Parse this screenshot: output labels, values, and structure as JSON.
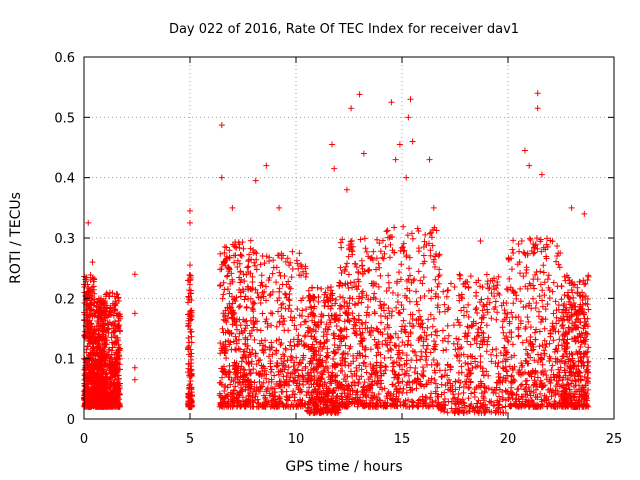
{
  "chart_data": {
    "type": "scatter",
    "title": "Day 022 of 2016, Rate Of TEC Index for receiver dav1",
    "xlabel": "GPS time / hours",
    "ylabel": "ROTI / TECUs",
    "xlim": [
      0,
      25
    ],
    "ylim": [
      0,
      0.6
    ],
    "xticks": [
      0,
      5,
      10,
      15,
      20,
      25
    ],
    "yticks": [
      0,
      0.1,
      0.2,
      0.3,
      0.4,
      0.5,
      0.6
    ],
    "xtick_labels": [
      "0",
      "5",
      "10",
      "15",
      "20",
      "25"
    ],
    "ytick_labels": [
      "0",
      "0.1",
      "0.2",
      "0.3",
      "0.4",
      "0.5",
      "0.6"
    ],
    "grid": true,
    "marker": "+",
    "color": "#ff0000",
    "series": [
      {
        "name": "ROTI",
        "notable_points": [
          {
            "x": 0.2,
            "y": 0.325
          },
          {
            "x": 0.4,
            "y": 0.26
          },
          {
            "x": 2.4,
            "y": 0.24
          },
          {
            "x": 2.4,
            "y": 0.175
          },
          {
            "x": 2.4,
            "y": 0.085
          },
          {
            "x": 2.4,
            "y": 0.065
          },
          {
            "x": 5.0,
            "y": 0.345
          },
          {
            "x": 5.0,
            "y": 0.325
          },
          {
            "x": 5.0,
            "y": 0.255
          },
          {
            "x": 6.5,
            "y": 0.487
          },
          {
            "x": 6.5,
            "y": 0.4
          },
          {
            "x": 7.0,
            "y": 0.35
          },
          {
            "x": 8.1,
            "y": 0.395
          },
          {
            "x": 8.6,
            "y": 0.42
          },
          {
            "x": 9.2,
            "y": 0.35
          },
          {
            "x": 11.7,
            "y": 0.455
          },
          {
            "x": 11.8,
            "y": 0.415
          },
          {
            "x": 12.4,
            "y": 0.38
          },
          {
            "x": 12.6,
            "y": 0.515
          },
          {
            "x": 13.0,
            "y": 0.538
          },
          {
            "x": 13.2,
            "y": 0.44
          },
          {
            "x": 14.5,
            "y": 0.525
          },
          {
            "x": 14.7,
            "y": 0.43
          },
          {
            "x": 14.9,
            "y": 0.455
          },
          {
            "x": 15.3,
            "y": 0.5
          },
          {
            "x": 15.4,
            "y": 0.53
          },
          {
            "x": 15.5,
            "y": 0.46
          },
          {
            "x": 15.2,
            "y": 0.4
          },
          {
            "x": 16.3,
            "y": 0.43
          },
          {
            "x": 16.5,
            "y": 0.35
          },
          {
            "x": 20.8,
            "y": 0.445
          },
          {
            "x": 21.0,
            "y": 0.42
          },
          {
            "x": 21.4,
            "y": 0.54
          },
          {
            "x": 21.4,
            "y": 0.515
          },
          {
            "x": 21.6,
            "y": 0.405
          },
          {
            "x": 23.0,
            "y": 0.35
          },
          {
            "x": 23.6,
            "y": 0.34
          },
          {
            "x": 20.5,
            "y": 0.29
          },
          {
            "x": 18.7,
            "y": 0.295
          }
        ],
        "dense_clusters": [
          {
            "x_range": [
              0.0,
              0.5
            ],
            "y_range": [
              0.02,
              0.24
            ],
            "density": "high"
          },
          {
            "x_range": [
              0.5,
              1.0
            ],
            "y_range": [
              0.02,
              0.2
            ],
            "density": "high"
          },
          {
            "x_range": [
              1.0,
              1.7
            ],
            "y_range": [
              0.02,
              0.21
            ],
            "density": "high"
          },
          {
            "x_range": [
              4.9,
              5.1
            ],
            "y_range": [
              0.02,
              0.24
            ],
            "density": "medium"
          },
          {
            "x_range": [
              6.4,
              8.0
            ],
            "y_range": [
              0.02,
              0.3
            ],
            "density": "high"
          },
          {
            "x_range": [
              8.0,
              10.5
            ],
            "y_range": [
              0.02,
              0.28
            ],
            "density": "high"
          },
          {
            "x_range": [
              10.5,
              12.0
            ],
            "y_range": [
              0.01,
              0.22
            ],
            "density": "high"
          },
          {
            "x_range": [
              12.0,
              14.0
            ],
            "y_range": [
              0.02,
              0.3
            ],
            "density": "high"
          },
          {
            "x_range": [
              14.0,
              16.8
            ],
            "y_range": [
              0.02,
              0.32
            ],
            "density": "high"
          },
          {
            "x_range": [
              16.8,
              20.0
            ],
            "y_range": [
              0.01,
              0.24
            ],
            "density": "high"
          },
          {
            "x_range": [
              20.0,
              22.5
            ],
            "y_range": [
              0.02,
              0.3
            ],
            "density": "high"
          },
          {
            "x_range": [
              22.5,
              23.8
            ],
            "y_range": [
              0.02,
              0.24
            ],
            "density": "high"
          }
        ]
      }
    ]
  }
}
